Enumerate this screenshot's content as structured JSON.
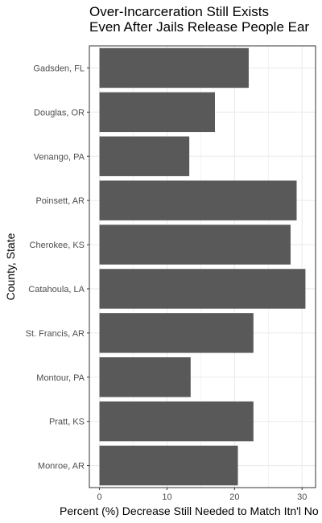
{
  "chart_data": {
    "type": "bar",
    "orientation": "horizontal",
    "title_lines": [
      "Over-Incarceration Still Exists",
      "Even After Jails Release People Ear"
    ],
    "xlabel": "Percent (%) Decrease Still Needed to Match Itn'l No",
    "ylabel": "County, State",
    "categories": [
      "Gadsden, FL",
      "Douglas, OR",
      "Venango, PA",
      "Poinsett, AR",
      "Cherokee, KS",
      "Catahoula, LA",
      "St. Francis, AR",
      "Montour, PA",
      "Pratt, KS",
      "Monroe, AR"
    ],
    "values": [
      22.1,
      17.1,
      13.3,
      29.2,
      28.3,
      30.5,
      22.8,
      13.5,
      22.8,
      20.5
    ],
    "xlim": [
      -1.5,
      32
    ],
    "xticks": [
      "0",
      "10",
      "20",
      "30"
    ],
    "grid": true,
    "bar_color": "#595959",
    "grid_color": "#ebebeb",
    "panel_border_color": "#333333"
  }
}
